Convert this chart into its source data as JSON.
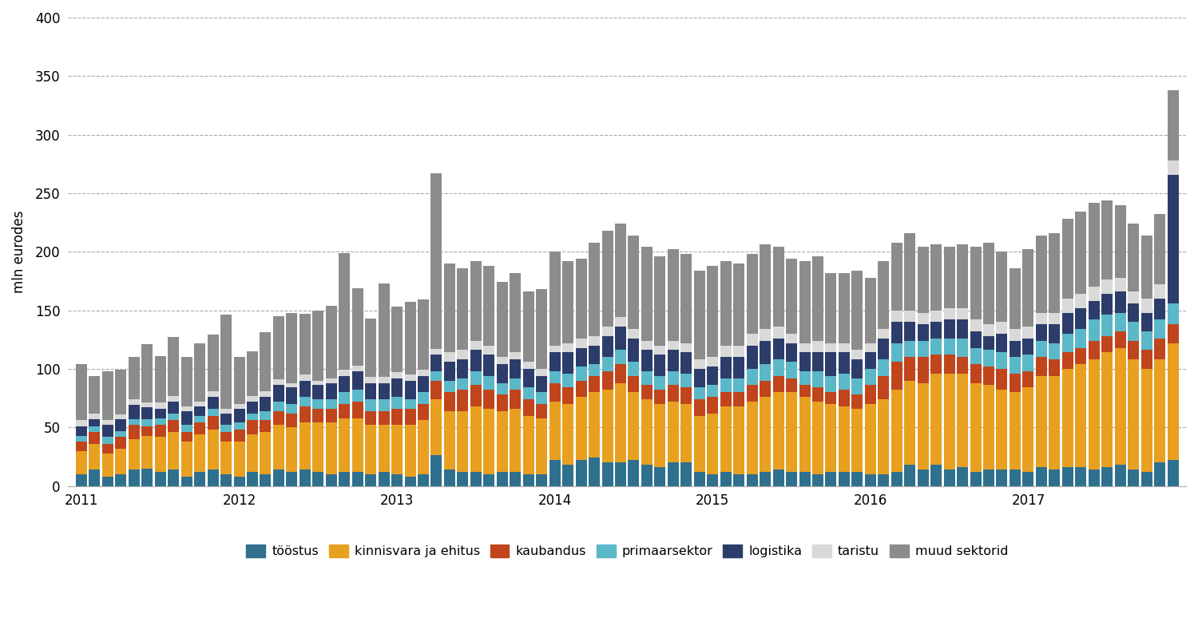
{
  "title": "",
  "ylabel": "mln eurodes",
  "ylim": [
    0,
    400
  ],
  "yticks": [
    0,
    50,
    100,
    150,
    200,
    250,
    300,
    350,
    400
  ],
  "colors": {
    "tööstus": "#2e708e",
    "kinnisvara ja ehitus": "#e8a020",
    "kaubandus": "#c0441c",
    "primaarsektor": "#5bb8c8",
    "logistika": "#2d3d6b",
    "taristu": "#d9d9d9",
    "muud sektorid": "#8c8c8c"
  },
  "legend_labels": [
    "tööstus",
    "kinnisvara ja ehitus",
    "kaubandus",
    "primaarsektor",
    "logistika",
    "taristu",
    "muud sektorid"
  ],
  "data": {
    "tööstus": [
      10,
      14,
      8,
      10,
      14,
      15,
      12,
      14,
      8,
      12,
      14,
      10,
      8,
      12,
      10,
      14,
      12,
      14,
      12,
      10,
      12,
      12,
      10,
      12,
      10,
      8,
      10,
      26,
      14,
      12,
      12,
      10,
      12,
      12,
      10,
      10,
      22,
      18,
      22,
      24,
      20,
      20,
      22,
      18,
      16,
      20,
      20,
      12,
      10,
      12,
      10,
      10,
      12,
      14,
      12,
      12,
      10,
      12,
      12,
      12,
      10,
      10,
      12,
      18,
      14,
      18,
      14,
      16,
      12,
      14,
      14,
      14,
      12,
      16,
      14,
      16,
      16,
      14,
      16,
      18,
      14,
      12,
      20,
      22
    ],
    "kinnisvara ja ehitus": [
      20,
      22,
      20,
      22,
      26,
      28,
      30,
      32,
      30,
      32,
      34,
      28,
      30,
      32,
      36,
      38,
      38,
      40,
      42,
      44,
      46,
      46,
      42,
      40,
      42,
      44,
      46,
      48,
      50,
      52,
      56,
      56,
      52,
      54,
      50,
      48,
      50,
      52,
      54,
      56,
      62,
      68,
      58,
      56,
      54,
      52,
      50,
      48,
      52,
      56,
      58,
      62,
      64,
      66,
      68,
      64,
      62,
      58,
      56,
      54,
      60,
      64,
      70,
      72,
      74,
      78,
      82,
      80,
      76,
      72,
      68,
      66,
      72,
      78,
      80,
      84,
      88,
      94,
      98,
      100,
      94,
      88,
      88,
      100
    ],
    "kaubandus": [
      8,
      10,
      8,
      10,
      12,
      8,
      10,
      10,
      8,
      10,
      12,
      8,
      10,
      12,
      10,
      12,
      12,
      14,
      12,
      12,
      12,
      14,
      12,
      12,
      14,
      14,
      14,
      16,
      16,
      18,
      18,
      16,
      14,
      16,
      14,
      12,
      16,
      14,
      14,
      14,
      16,
      16,
      14,
      12,
      12,
      14,
      14,
      14,
      14,
      12,
      12,
      14,
      14,
      14,
      12,
      10,
      12,
      10,
      14,
      12,
      16,
      20,
      24,
      20,
      22,
      16,
      16,
      14,
      16,
      16,
      18,
      16,
      14,
      16,
      14,
      14,
      14,
      16,
      14,
      14,
      16,
      16,
      18,
      16
    ],
    "primaarsektor": [
      5,
      5,
      6,
      5,
      5,
      6,
      6,
      6,
      6,
      6,
      6,
      6,
      6,
      6,
      8,
      8,
      8,
      8,
      8,
      8,
      10,
      10,
      10,
      10,
      10,
      8,
      10,
      8,
      10,
      10,
      12,
      12,
      10,
      10,
      10,
      10,
      10,
      12,
      12,
      10,
      12,
      12,
      12,
      12,
      12,
      12,
      12,
      10,
      10,
      12,
      12,
      14,
      14,
      14,
      14,
      12,
      14,
      14,
      14,
      14,
      14,
      14,
      16,
      14,
      14,
      14,
      14,
      16,
      14,
      14,
      14,
      14,
      14,
      14,
      14,
      16,
      16,
      18,
      18,
      16,
      16,
      16,
      16,
      18
    ],
    "logistika": [
      8,
      6,
      10,
      10,
      12,
      10,
      8,
      10,
      12,
      8,
      10,
      10,
      12,
      10,
      12,
      14,
      14,
      14,
      12,
      14,
      14,
      16,
      14,
      14,
      16,
      16,
      14,
      14,
      16,
      16,
      18,
      18,
      16,
      16,
      16,
      14,
      16,
      18,
      16,
      16,
      18,
      20,
      20,
      18,
      18,
      18,
      18,
      16,
      16,
      18,
      18,
      20,
      20,
      18,
      16,
      16,
      16,
      20,
      18,
      16,
      14,
      18,
      18,
      16,
      14,
      14,
      16,
      16,
      14,
      12,
      16,
      14,
      14,
      14,
      16,
      18,
      18,
      16,
      18,
      18,
      16,
      16,
      18,
      110
    ],
    "taristu": [
      5,
      5,
      4,
      4,
      5,
      4,
      5,
      5,
      4,
      4,
      5,
      4,
      4,
      5,
      5,
      5,
      4,
      5,
      4,
      4,
      5,
      5,
      5,
      5,
      5,
      5,
      5,
      5,
      8,
      8,
      8,
      8,
      6,
      6,
      6,
      6,
      6,
      8,
      8,
      8,
      8,
      8,
      8,
      8,
      8,
      8,
      8,
      8,
      8,
      10,
      10,
      10,
      10,
      10,
      8,
      8,
      10,
      8,
      8,
      8,
      8,
      8,
      10,
      10,
      10,
      10,
      10,
      10,
      10,
      10,
      10,
      10,
      10,
      10,
      10,
      12,
      12,
      12,
      12,
      12,
      10,
      12,
      12,
      12
    ],
    "muud sektorid": [
      48,
      32,
      42,
      38,
      36,
      50,
      40,
      50,
      42,
      50,
      48,
      80,
      40,
      38,
      50,
      54,
      60,
      52,
      60,
      62,
      100,
      66,
      50,
      80,
      56,
      62,
      60,
      150,
      76,
      70,
      68,
      68,
      64,
      68,
      60,
      68,
      80,
      70,
      68,
      80,
      82,
      80,
      80,
      80,
      76,
      78,
      76,
      76,
      78,
      72,
      70,
      68,
      72,
      68,
      64,
      70,
      72,
      60,
      60,
      68,
      56,
      58,
      58,
      66,
      56,
      56,
      52,
      54,
      62,
      70,
      60,
      52,
      66,
      66,
      68,
      68,
      70,
      72,
      68,
      62,
      58,
      54,
      60,
      60
    ]
  },
  "xtick_positions": [
    0,
    12,
    24,
    36,
    48,
    60,
    72
  ],
  "xtick_labels": [
    "2011",
    "2012",
    "2013",
    "2014",
    "2015",
    "2016",
    "2017"
  ],
  "background_color": "#ffffff"
}
